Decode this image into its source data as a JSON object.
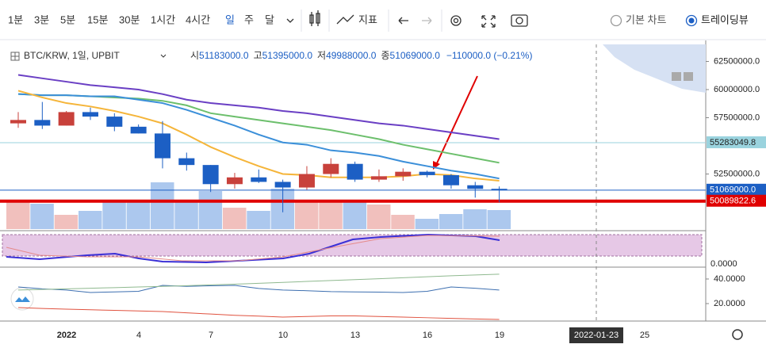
{
  "toolbar": {
    "intervals": [
      "1분",
      "3분",
      "5분",
      "15분",
      "30분",
      "1시간",
      "4시간",
      "일",
      "주",
      "달"
    ],
    "active_interval": "일",
    "indicators": "지표",
    "chart_modes": [
      "기본 차트",
      "트레이딩뷰"
    ],
    "active_mode": "트레이딩뷰"
  },
  "legend": {
    "symbol": "BTC/KRW, 1일, UPBIT",
    "open_prefix": "시",
    "open": "51183000.0",
    "high_prefix": "고",
    "high": "51395000.0",
    "low_prefix": "저",
    "low": "49988000.0",
    "close_prefix": "종",
    "close": "51069000.0",
    "change": "−110000.0 (−0.21%)"
  },
  "chart_data": {
    "type": "candlestick",
    "open": [
      57000000,
      57300000,
      56800000,
      58000000,
      57600000,
      56700000,
      56100000,
      53900000,
      53300000,
      51600000,
      52200000,
      51800000,
      51300000,
      52500000,
      53400000,
      52000000,
      52300000,
      52700000,
      52400000,
      51500000,
      51183000
    ],
    "high": [
      58000000,
      58900000,
      58100000,
      58400000,
      57900000,
      56900000,
      57200000,
      54400000,
      53300000,
      52600000,
      52900000,
      52000000,
      53200000,
      53900000,
      53600000,
      52900000,
      53000000,
      52800000,
      52500000,
      51800000,
      51395000
    ],
    "low": [
      56600000,
      56500000,
      56800000,
      57300000,
      56300000,
      56100000,
      53000000,
      52800000,
      50900000,
      51200000,
      51700000,
      49100000,
      51100000,
      52200000,
      51800000,
      51800000,
      51900000,
      52200000,
      51200000,
      50400000,
      49988000
    ],
    "close": [
      57300000,
      56800000,
      58000000,
      57600000,
      56700000,
      56100000,
      53900000,
      53300000,
      51600000,
      52200000,
      51800000,
      51300000,
      52500000,
      53400000,
      52000000,
      52300000,
      52700000,
      52400000,
      51500000,
      51179000,
      51069000
    ],
    "up_color": "#c8413b",
    "down_color": "#1c5fc4",
    "volume": [
      34,
      32,
      18,
      23,
      36,
      36,
      59,
      36,
      48,
      27,
      23,
      51,
      36,
      36,
      35,
      31,
      18,
      13,
      19,
      25,
      24
    ],
    "vlim": [
      0,
      60
    ],
    "ma": [
      {
        "color": "#6a3fc4",
        "values": [
          61300000,
          61000000,
          60700000,
          60400000,
          60200000,
          60000000,
          59600000,
          59100000,
          58800000,
          58600000,
          58400000,
          58100000,
          57900000,
          57600000,
          57300000,
          57000000,
          56800000,
          56500000,
          56200000,
          55900000,
          55600000
        ]
      },
      {
        "color": "#6cbf6c",
        "values": [
          59600000,
          59500000,
          59500000,
          59400000,
          59300000,
          59200000,
          59000000,
          58600000,
          57900000,
          57600000,
          57300000,
          57000000,
          56700000,
          56400000,
          56000000,
          55600000,
          55100000,
          54700000,
          54300000,
          53900000,
          53500000
        ]
      },
      {
        "color": "#3b8fd9",
        "values": [
          59600000,
          59500000,
          59500000,
          59400000,
          59400000,
          59100000,
          58800000,
          58200000,
          57500000,
          56800000,
          56000000,
          55300000,
          55100000,
          54600000,
          54400000,
          54100000,
          53600000,
          53200000,
          52800000,
          52500000,
          52100000
        ]
      },
      {
        "color": "#f5b53a",
        "values": [
          59900000,
          59300000,
          58800000,
          58500000,
          58100000,
          57600000,
          57000000,
          56000000,
          54900000,
          54000000,
          53200000,
          52500000,
          52400000,
          52200000,
          52200000,
          52200000,
          52300000,
          52500000,
          52400000,
          52100000,
          51900000
        ]
      }
    ],
    "ylim": [
      47535000,
      64085000
    ],
    "yticks": [
      {
        "value": 62500000,
        "label": "62500000.0"
      },
      {
        "value": 60000000,
        "label": "60000000.0"
      },
      {
        "value": 57500000,
        "label": "57500000.0"
      },
      {
        "value": 52500000,
        "label": "52500000.0"
      }
    ],
    "price_lines": [
      {
        "value": 55283049.8,
        "label": "55283049.8",
        "color": "#9ad3de",
        "tag": "#9ad3de"
      },
      {
        "value": 51069000,
        "label": "51069000.0",
        "color": "#1c5fc4",
        "tag": "#1c5fc4"
      },
      {
        "value": 50089822.6,
        "label": "50089822.6",
        "color": "#e00000",
        "tag": "#e00000"
      }
    ],
    "pane2": {
      "ylim": [
        5.8,
        49.0
      ],
      "yticks": [
        {
          "value": 40,
          "label": "40.0000"
        },
        {
          "value": 20,
          "label": "20.0000"
        }
      ],
      "series": [
        {
          "color": "#3d6fb0",
          "values": [
            33.5,
            32,
            31,
            29,
            29.5,
            30,
            34.8,
            34,
            34.5,
            34.8,
            32.3,
            31,
            30.5,
            29.7,
            29.5,
            29.3,
            29,
            30,
            33.5,
            32.5,
            31
          ]
        },
        {
          "color": "#8fb98f",
          "values": [
            31,
            31.5,
            32,
            32.5,
            33,
            33.5,
            34,
            34.6,
            35.2,
            35.8,
            36.5,
            37.2,
            38,
            38.8,
            39.5,
            40.2,
            41,
            41.8,
            42.6,
            43.3,
            43.9
          ]
        },
        {
          "color": "#e0523f",
          "values": [
            16.8,
            16,
            15.5,
            15,
            14.5,
            14,
            13.5,
            12.5,
            11.5,
            10.5,
            9.8,
            9,
            9.5,
            10,
            10,
            9.5,
            9,
            8.5,
            8,
            7.5,
            7.1
          ]
        }
      ]
    },
    "pane1_tick": "0.0000",
    "x_labels": [
      "2022",
      "4",
      "7",
      "10",
      "13",
      "16",
      "19"
    ],
    "crosshair_label": "2022-01-23",
    "x_label_after": "25"
  }
}
